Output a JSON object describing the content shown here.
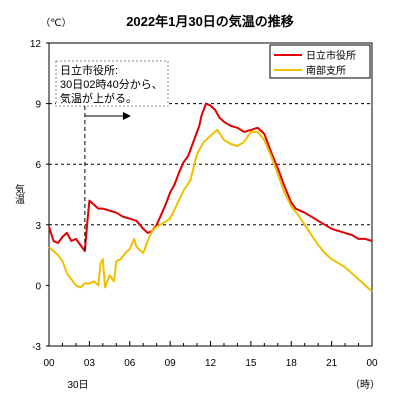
{
  "chart_data": {
    "type": "line",
    "title": "2022年1月30日の気温の推移",
    "ylabel": "気温",
    "y_unit": "（℃）",
    "x_unit": "（時）",
    "date_label": "30日",
    "ylim": [
      -3,
      12
    ],
    "xlim": [
      "00:00",
      "24:00"
    ],
    "y_ticks": [
      "-3",
      "0",
      "3",
      "6",
      "9",
      "12"
    ],
    "x_ticks": [
      "00",
      "03",
      "06",
      "09",
      "12",
      "15",
      "18",
      "21",
      "00"
    ],
    "grid": "dashed lines at 3, 6, 9",
    "legend_position": "top-right",
    "annotation": {
      "lines": [
        "日立市役所:",
        "30日02時40分から、",
        "気温が上がる。"
      ],
      "time": "02:40"
    },
    "series": [
      {
        "name": "日立市役所",
        "color": "#e00000",
        "points": [
          [
            "00:00",
            2.9
          ],
          [
            "00:20",
            2.2
          ],
          [
            "00:40",
            2.1
          ],
          [
            "01:00",
            2.4
          ],
          [
            "01:20",
            2.6
          ],
          [
            "01:40",
            2.2
          ],
          [
            "02:00",
            2.3
          ],
          [
            "02:20",
            2.0
          ],
          [
            "02:40",
            1.7
          ],
          [
            "02:50",
            3.0
          ],
          [
            "03:00",
            4.2
          ],
          [
            "03:20",
            4.0
          ],
          [
            "03:40",
            3.8
          ],
          [
            "04:00",
            3.8
          ],
          [
            "04:30",
            3.7
          ],
          [
            "05:00",
            3.6
          ],
          [
            "05:30",
            3.4
          ],
          [
            "06:00",
            3.3
          ],
          [
            "06:30",
            3.2
          ],
          [
            "07:00",
            2.8
          ],
          [
            "07:20",
            2.6
          ],
          [
            "07:40",
            2.7
          ],
          [
            "08:00",
            3.0
          ],
          [
            "08:20",
            3.5
          ],
          [
            "08:40",
            4.0
          ],
          [
            "09:00",
            4.6
          ],
          [
            "09:20",
            5.0
          ],
          [
            "09:40",
            5.6
          ],
          [
            "10:00",
            6.1
          ],
          [
            "10:20",
            6.4
          ],
          [
            "10:40",
            7.0
          ],
          [
            "11:00",
            7.6
          ],
          [
            "11:10",
            7.9
          ],
          [
            "11:20",
            8.4
          ],
          [
            "11:40",
            9.0
          ],
          [
            "12:00",
            8.9
          ],
          [
            "12:20",
            8.7
          ],
          [
            "12:40",
            8.3
          ],
          [
            "13:00",
            8.1
          ],
          [
            "13:30",
            7.9
          ],
          [
            "14:00",
            7.8
          ],
          [
            "14:30",
            7.6
          ],
          [
            "15:00",
            7.7
          ],
          [
            "15:30",
            7.8
          ],
          [
            "16:00",
            7.5
          ],
          [
            "16:30",
            6.6
          ],
          [
            "17:00",
            5.8
          ],
          [
            "17:30",
            4.9
          ],
          [
            "18:00",
            4.1
          ],
          [
            "18:20",
            3.8
          ],
          [
            "18:40",
            3.7
          ],
          [
            "19:00",
            3.6
          ],
          [
            "19:30",
            3.4
          ],
          [
            "20:00",
            3.2
          ],
          [
            "20:30",
            3.0
          ],
          [
            "21:00",
            2.8
          ],
          [
            "21:30",
            2.7
          ],
          [
            "22:00",
            2.6
          ],
          [
            "22:30",
            2.5
          ],
          [
            "23:00",
            2.3
          ],
          [
            "23:30",
            2.3
          ],
          [
            "24:00",
            2.2
          ]
        ]
      },
      {
        "name": "南部支所",
        "color": "#f0c000",
        "points": [
          [
            "00:00",
            1.9
          ],
          [
            "00:20",
            1.7
          ],
          [
            "00:40",
            1.5
          ],
          [
            "01:00",
            1.2
          ],
          [
            "01:20",
            0.6
          ],
          [
            "01:40",
            0.3
          ],
          [
            "02:00",
            0.0
          ],
          [
            "02:20",
            -0.1
          ],
          [
            "02:40",
            0.1
          ],
          [
            "03:00",
            0.1
          ],
          [
            "03:20",
            0.2
          ],
          [
            "03:40",
            0.0
          ],
          [
            "03:50",
            1.1
          ],
          [
            "04:00",
            1.3
          ],
          [
            "04:10",
            -0.1
          ],
          [
            "04:30",
            0.5
          ],
          [
            "04:50",
            0.2
          ],
          [
            "05:00",
            1.2
          ],
          [
            "05:20",
            1.3
          ],
          [
            "05:40",
            1.6
          ],
          [
            "06:00",
            1.8
          ],
          [
            "06:20",
            2.3
          ],
          [
            "06:30",
            1.9
          ],
          [
            "07:00",
            1.6
          ],
          [
            "07:20",
            2.2
          ],
          [
            "07:40",
            2.7
          ],
          [
            "08:00",
            2.9
          ],
          [
            "08:30",
            3.1
          ],
          [
            "09:00",
            3.3
          ],
          [
            "09:30",
            4.0
          ],
          [
            "10:00",
            4.7
          ],
          [
            "10:30",
            5.2
          ],
          [
            "11:00",
            6.5
          ],
          [
            "11:30",
            7.1
          ],
          [
            "12:00",
            7.4
          ],
          [
            "12:30",
            7.7
          ],
          [
            "13:00",
            7.2
          ],
          [
            "13:30",
            7.0
          ],
          [
            "14:00",
            6.9
          ],
          [
            "14:30",
            7.1
          ],
          [
            "15:00",
            7.6
          ],
          [
            "15:30",
            7.6
          ],
          [
            "16:00",
            7.2
          ],
          [
            "16:30",
            6.4
          ],
          [
            "17:00",
            5.5
          ],
          [
            "17:30",
            4.6
          ],
          [
            "18:00",
            3.9
          ],
          [
            "18:30",
            3.5
          ],
          [
            "19:00",
            3.0
          ],
          [
            "19:30",
            2.5
          ],
          [
            "20:00",
            2.0
          ],
          [
            "20:30",
            1.6
          ],
          [
            "21:00",
            1.3
          ],
          [
            "21:30",
            1.1
          ],
          [
            "22:00",
            0.9
          ],
          [
            "22:30",
            0.6
          ],
          [
            "23:00",
            0.3
          ],
          [
            "23:30",
            0.0
          ],
          [
            "24:00",
            -0.3
          ]
        ]
      }
    ]
  }
}
